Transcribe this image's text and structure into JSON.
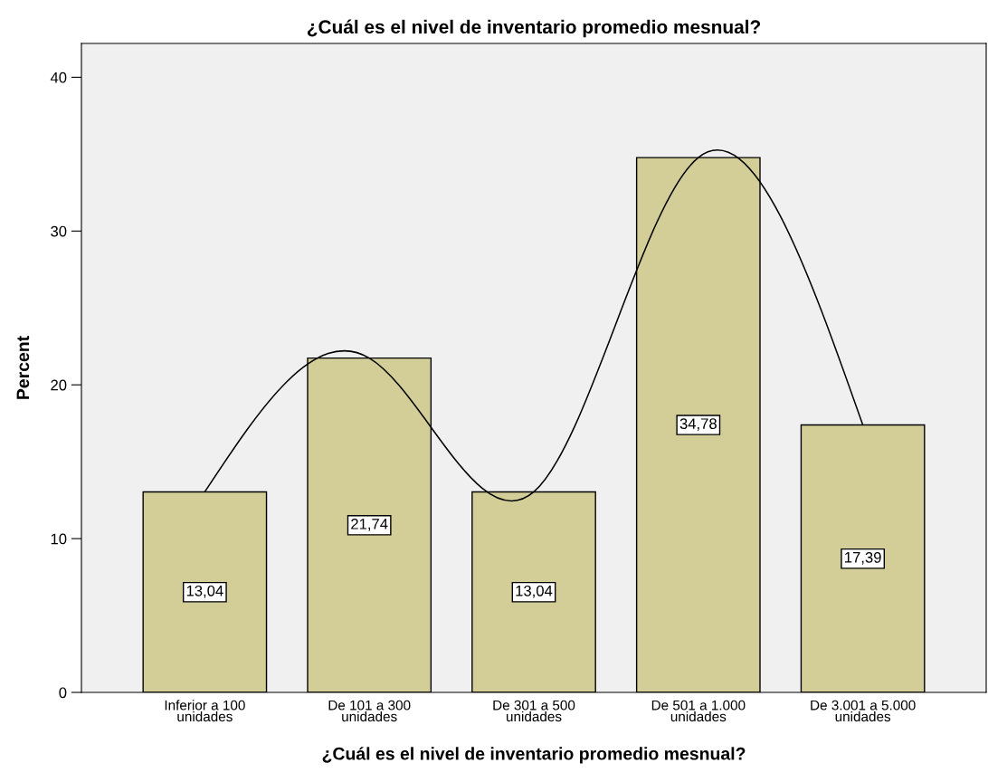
{
  "chart_data": {
    "type": "bar",
    "title": "¿Cuál es el nivel de inventario promedio mesnual?",
    "xlabel": "¿Cuál es el nivel de inventario promedio mesnual?",
    "ylabel": "Percent",
    "categories": [
      "Inferior a 100\nunidades",
      "De 101 a 300\nunidades",
      "De 301 a 500\nunidades",
      "De 501 a 1.000\nunidades",
      "De 3.001 a 5.000\nunidades"
    ],
    "series": [
      {
        "type": "bar",
        "color": "#d3ce97",
        "values": [
          13.04,
          21.74,
          13.04,
          34.78,
          17.39
        ],
        "value_labels": [
          "13,04",
          "21,74",
          "13,04",
          "34,78",
          "17,39"
        ]
      },
      {
        "type": "line",
        "color": "#000000",
        "values": [
          13.04,
          21.74,
          13.04,
          34.78,
          17.39
        ]
      }
    ],
    "ylim": [
      0,
      42.2
    ],
    "yticks": [
      0,
      10,
      20,
      30,
      40
    ],
    "grid": false,
    "legend": false,
    "marker": "none",
    "line_style": "solid"
  }
}
